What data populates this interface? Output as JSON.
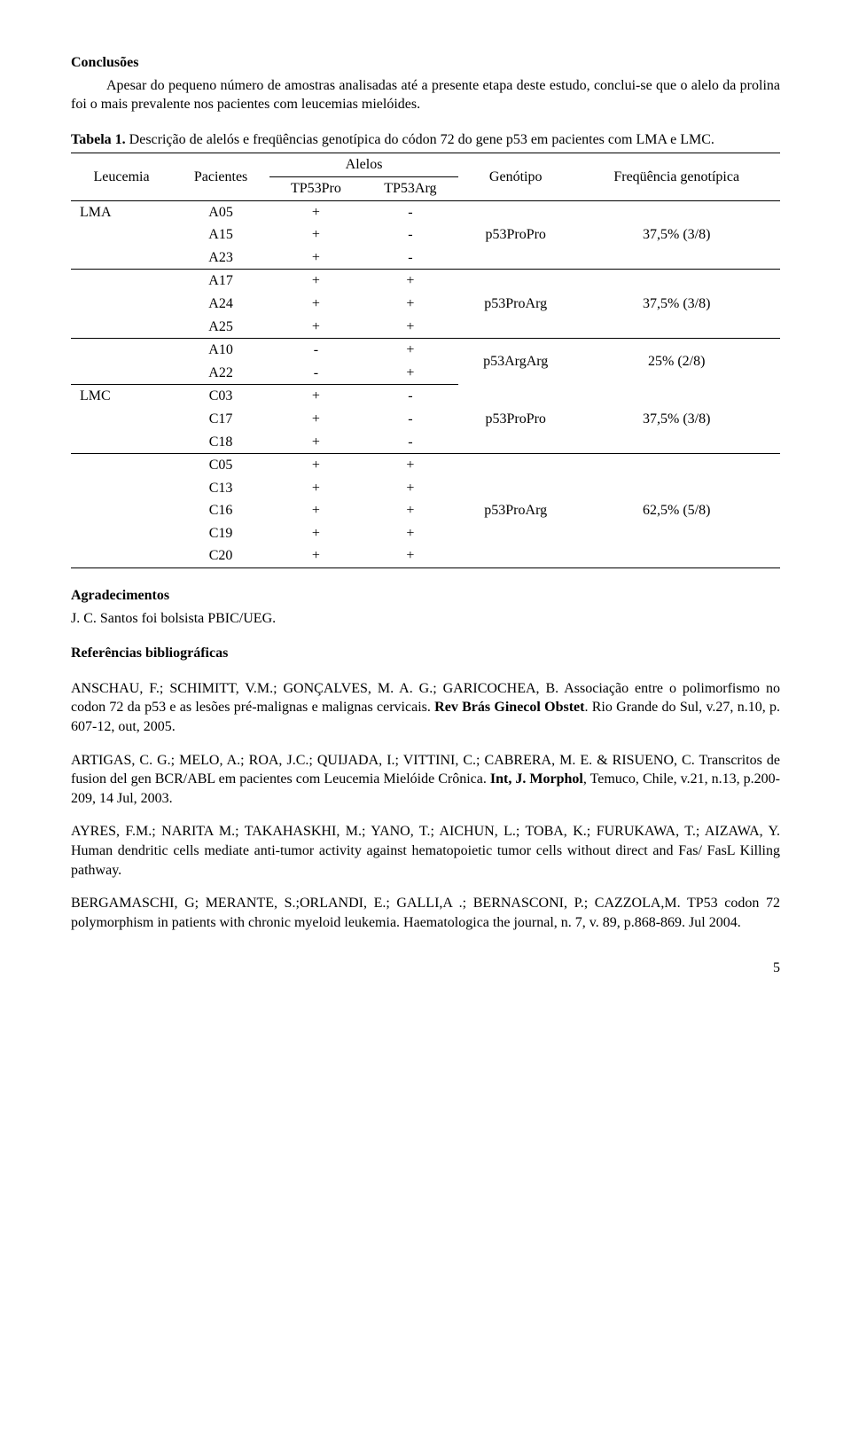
{
  "conclusoes": {
    "title": "Conclusões",
    "text": "Apesar do pequeno número de amostras analisadas até a presente etapa deste estudo, conclui-se que o alelo da prolina foi o mais prevalente nos pacientes com leucemias mielóides."
  },
  "tabela": {
    "caption_label": "Tabela 1.",
    "caption_text": " Descrição de alelós e freqüências genotípica do códon 72 do gene p53 em pacientes com LMA e LMC.",
    "headers": {
      "leucemia": "Leucemia",
      "pacientes": "Pacientes",
      "alelos": "Alelos",
      "tp53pro": "TP53Pro",
      "tp53arg": "TP53Arg",
      "genotipo": "Genótipo",
      "freq": "Freqüência genotípica"
    },
    "rows": [
      {
        "leu": "LMA",
        "pac": "A05",
        "pro": "+",
        "arg": "-",
        "gen": "",
        "freq": ""
      },
      {
        "leu": "",
        "pac": "A15",
        "pro": "+",
        "arg": "-",
        "gen": "p53ProPro",
        "freq": "37,5% (3/8)"
      },
      {
        "leu": "",
        "pac": "A23",
        "pro": "+",
        "arg": "-",
        "gen": "",
        "freq": "",
        "sep": true
      },
      {
        "leu": "",
        "pac": "A17",
        "pro": "+",
        "arg": "+",
        "gen": "",
        "freq": ""
      },
      {
        "leu": "",
        "pac": "A24",
        "pro": "+",
        "arg": "+",
        "gen": "p53ProArg",
        "freq": "37,5% (3/8)"
      },
      {
        "leu": "",
        "pac": "A25",
        "pro": "+",
        "arg": "+",
        "gen": "",
        "freq": "",
        "sep": true
      },
      {
        "leu": "",
        "pac": "A10",
        "pro": "-",
        "arg": "+",
        "gen": "p53ArgArg",
        "freq": "25% (2/8)",
        "rowspan2": true
      },
      {
        "leu": "",
        "pac": "A22",
        "pro": "-",
        "arg": "+",
        "gen": "",
        "freq": "",
        "sep": true
      },
      {
        "leu": "LMC",
        "pac": "C03",
        "pro": "+",
        "arg": "-",
        "gen": "",
        "freq": ""
      },
      {
        "leu": "",
        "pac": "C17",
        "pro": "+",
        "arg": "-",
        "gen": "p53ProPro",
        "freq": "37,5% (3/8)"
      },
      {
        "leu": "",
        "pac": "C18",
        "pro": "+",
        "arg": "-",
        "gen": "",
        "freq": "",
        "sep": true
      },
      {
        "leu": "",
        "pac": "C05",
        "pro": "+",
        "arg": "+",
        "gen": "",
        "freq": ""
      },
      {
        "leu": "",
        "pac": "C13",
        "pro": "+",
        "arg": "+",
        "gen": "",
        "freq": ""
      },
      {
        "leu": "",
        "pac": "C16",
        "pro": "+",
        "arg": "+",
        "gen": "p53ProArg",
        "freq": "62,5% (5/8)"
      },
      {
        "leu": "",
        "pac": "C19",
        "pro": "+",
        "arg": "+",
        "gen": "",
        "freq": ""
      },
      {
        "leu": "",
        "pac": "C20",
        "pro": "+",
        "arg": "+",
        "gen": "",
        "freq": "",
        "bottom": true
      }
    ]
  },
  "agradecimentos": {
    "title": "Agradecimentos",
    "text": "J. C. Santos foi bolsista PBIC/UEG."
  },
  "referencias": {
    "title": "Referências bibliográficas",
    "items": [
      {
        "pre": "ANSCHAU, F.; SCHIMITT, V.M.; GONÇALVES, M. A. G.; GARICOCHEA, B. Associação entre o polimorfismo no codon 72 da p53 e as lesões pré-malignas e malignas cervicais. ",
        "bold": "Rev Brás Ginecol Obstet",
        "post": ". Rio Grande do Sul, v.27, n.10, p. 607-12, out, 2005."
      },
      {
        "pre": "ARTIGAS, C. G.; MELO, A.; ROA, J.C.; QUIJADA, I.; VITTINI, C.; CABRERA, M. E. & RISUENO, C. Transcritos de fusion del gen BCR/ABL em pacientes com Leucemia Mielóide Crônica. ",
        "bold": "Int, J. Morphol",
        "post": ", Temuco, Chile, v.21, n.13, p.200-209, 14 Jul, 2003."
      },
      {
        "pre": "AYRES, F.M.; NARITA M.; TAKAHASKHI, M.; YANO, T.; AICHUN, L.; TOBA, K.; FURUKAWA, T.; AIZAWA, Y. Human dendritic cells mediate anti-tumor activity against hematopoietic tumor cells without direct and Fas/ FasL Killing pathway.",
        "bold": "",
        "post": ""
      },
      {
        "pre": "BERGAMASCHI, G; MERANTE, S.;ORLANDI, E.; GALLI,A .; BERNASCONI, P.; CAZZOLA,M. TP53 codon 72 polymorphism in patients with chronic myeloid leukemia. Haematologica the journal, n. 7, v. 89, p.868-869. Jul 2004.",
        "bold": "",
        "post": ""
      }
    ]
  },
  "page_number": "5"
}
